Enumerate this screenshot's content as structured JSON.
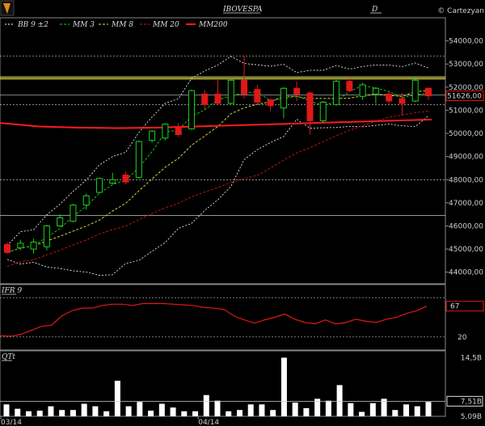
{
  "header": {
    "symbol": "IBOVESPA",
    "period": "D",
    "brand": "© Cartezyan"
  },
  "legend": [
    {
      "label": "BB  9 ±2",
      "color": "#ffffff",
      "dash": "2,2"
    },
    {
      "label": "MM  3",
      "color": "#19d219",
      "dash": "3,2"
    },
    {
      "label": "MM  8",
      "color": "#e6e64a",
      "dash": "3,2"
    },
    {
      "label": "MM 20",
      "color": "#c81a1a",
      "dash": "3,2"
    },
    {
      "label": "MM200",
      "color": "#ff1a1a",
      "dash": ""
    }
  ],
  "colors": {
    "up": "#19d219",
    "down": "#e01818",
    "hline": "#c8c8c8",
    "resistance": "#d8d81e"
  },
  "chart_data": [
    {
      "type": "candlestick",
      "title": "IBOVESPA",
      "ylim": [
        43500,
        55000
      ],
      "yticks": [
        44000,
        45000,
        46000,
        47000,
        48000,
        49000,
        50000,
        51000,
        52000,
        53000,
        54000
      ],
      "ytick_labels": [
        "44000,00",
        "45000,00",
        "46000,00",
        "47000,00",
        "48000,00",
        "49000,00",
        "50000,00",
        "51000,00",
        "52000,00",
        "53000,00",
        "54000,00"
      ],
      "last_price": 51626,
      "last_label": "51626,00",
      "xtick_labels": [
        {
          "index": 0,
          "label": "03/14"
        },
        {
          "index": 15,
          "label": "04/14"
        }
      ],
      "horizontal_lines": [
        53350,
        52400,
        51660,
        51250,
        48000,
        46450
      ],
      "resistance_lines": [
        52450,
        52350
      ],
      "candles": [
        {
          "o": 45200,
          "h": 45300,
          "l": 44800,
          "c": 44850
        },
        {
          "o": 45050,
          "h": 45400,
          "l": 44950,
          "c": 45250
        },
        {
          "o": 45000,
          "h": 45450,
          "l": 44800,
          "c": 45300
        },
        {
          "o": 45100,
          "h": 46050,
          "l": 44950,
          "c": 46000
        },
        {
          "o": 46000,
          "h": 46500,
          "l": 45950,
          "c": 46350
        },
        {
          "o": 46200,
          "h": 46950,
          "l": 46150,
          "c": 46900
        },
        {
          "o": 46900,
          "h": 47400,
          "l": 46700,
          "c": 47300
        },
        {
          "o": 47450,
          "h": 48100,
          "l": 47400,
          "c": 48050
        },
        {
          "o": 47850,
          "h": 48300,
          "l": 47800,
          "c": 48000
        },
        {
          "o": 48200,
          "h": 48350,
          "l": 47800,
          "c": 47900
        },
        {
          "o": 48100,
          "h": 49700,
          "l": 48050,
          "c": 49650
        },
        {
          "o": 49700,
          "h": 50150,
          "l": 49600,
          "c": 50100
        },
        {
          "o": 49800,
          "h": 50450,
          "l": 49700,
          "c": 50400
        },
        {
          "o": 50300,
          "h": 50450,
          "l": 49850,
          "c": 49950
        },
        {
          "o": 50200,
          "h": 51900,
          "l": 50150,
          "c": 51850
        },
        {
          "o": 51700,
          "h": 51900,
          "l": 51050,
          "c": 51250
        },
        {
          "o": 51700,
          "h": 52350,
          "l": 51250,
          "c": 51300
        },
        {
          "o": 51300,
          "h": 52350,
          "l": 51250,
          "c": 52300
        },
        {
          "o": 52300,
          "h": 53350,
          "l": 51500,
          "c": 51700
        },
        {
          "o": 51900,
          "h": 52100,
          "l": 51350,
          "c": 51350
        },
        {
          "o": 51450,
          "h": 51500,
          "l": 50950,
          "c": 51200
        },
        {
          "o": 51100,
          "h": 52000,
          "l": 50650,
          "c": 51950
        },
        {
          "o": 51950,
          "h": 52250,
          "l": 51400,
          "c": 51700
        },
        {
          "o": 51750,
          "h": 51800,
          "l": 49950,
          "c": 50550
        },
        {
          "o": 50550,
          "h": 51400,
          "l": 50450,
          "c": 51350
        },
        {
          "o": 51250,
          "h": 52350,
          "l": 51200,
          "c": 52250
        },
        {
          "o": 52250,
          "h": 52400,
          "l": 51800,
          "c": 51850
        },
        {
          "o": 51600,
          "h": 52200,
          "l": 51450,
          "c": 52100
        },
        {
          "o": 51700,
          "h": 52000,
          "l": 51300,
          "c": 51950
        },
        {
          "o": 51700,
          "h": 51800,
          "l": 51300,
          "c": 51400
        },
        {
          "o": 51500,
          "h": 51750,
          "l": 50800,
          "c": 51300
        },
        {
          "o": 51400,
          "h": 52400,
          "l": 51350,
          "c": 52300
        },
        {
          "o": 51950,
          "h": 52000,
          "l": 51450,
          "c": 51626
        }
      ]
    },
    {
      "type": "line",
      "title": "IFR 9",
      "ylim": [
        0,
        100
      ],
      "levels": [
        80,
        20
      ],
      "ytick_labels": [
        "20"
      ],
      "last_label": "67",
      "values": [
        22,
        21,
        24,
        30,
        36,
        38,
        52,
        60,
        64,
        64,
        68,
        70,
        70,
        68,
        71,
        71,
        71,
        70,
        69,
        68,
        65,
        64,
        62,
        52,
        46,
        41,
        46,
        50,
        55,
        47,
        42,
        40,
        46,
        40,
        42,
        47,
        44,
        42,
        47,
        50,
        56,
        60,
        67
      ]
    },
    {
      "type": "bar",
      "title": "QTt",
      "ylim": [
        5.09,
        15.6
      ],
      "unit": "B",
      "ytick_labels": [
        "14,5B",
        "7,51B",
        "5,09B"
      ],
      "average": 7.51,
      "values": [
        7.0,
        6.3,
        5.9,
        6.0,
        6.7,
        6.1,
        6.1,
        7.1,
        6.7,
        5.9,
        10.8,
        6.7,
        7.4,
        6.0,
        7.1,
        6.5,
        5.9,
        5.9,
        8.5,
        7.6,
        5.9,
        6.1,
        7.0,
        7.0,
        6.1,
        14.5,
        7.3,
        6.4,
        7.9,
        7.6,
        10.1,
        7.2,
        5.8,
        7.2,
        7.9,
        6.1,
        7.0,
        6.7,
        7.4
      ]
    }
  ]
}
